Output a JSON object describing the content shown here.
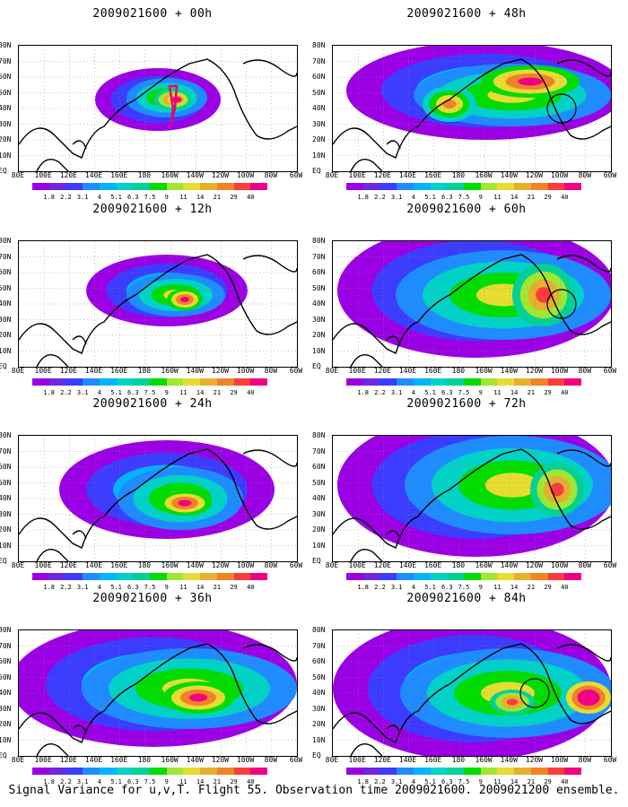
{
  "panels": [
    {
      "title": "2009021600 + 00h"
    },
    {
      "title": "2009021600 + 48h"
    },
    {
      "title": "2009021600 + 12h"
    },
    {
      "title": "2009021600 + 60h"
    },
    {
      "title": "2009021600 + 24h"
    },
    {
      "title": "2009021600 + 72h"
    },
    {
      "title": "2009021600 + 36h"
    },
    {
      "title": "2009021600 + 84h"
    }
  ],
  "lat_labels": [
    "80N",
    "70N",
    "60N",
    "50N",
    "40N",
    "30N",
    "20N",
    "10N",
    "EQ"
  ],
  "lon_labels": [
    "80E",
    "100E",
    "120E",
    "140E",
    "160E",
    "180",
    "160W",
    "140W",
    "120W",
    "100W",
    "80W",
    "60W"
  ],
  "colorbar": {
    "labels": [
      "1.8",
      "2.2",
      "3.1",
      "4",
      "5.1",
      "6.3",
      "7.5",
      "9",
      "11",
      "14",
      "21",
      "29",
      "40"
    ],
    "colors": [
      "#9b00e5",
      "#6e28dc",
      "#3c3cff",
      "#1e8cff",
      "#00b4ff",
      "#00d2c8",
      "#00d296",
      "#00dc00",
      "#a0e632",
      "#e6dc32",
      "#e6af2d",
      "#f08228",
      "#fa3c3c",
      "#f00082"
    ]
  },
  "footer": "Signal Variance for u,v,T. Flight 55. Observation time 2009021600. 2009021200 ensemble."
}
